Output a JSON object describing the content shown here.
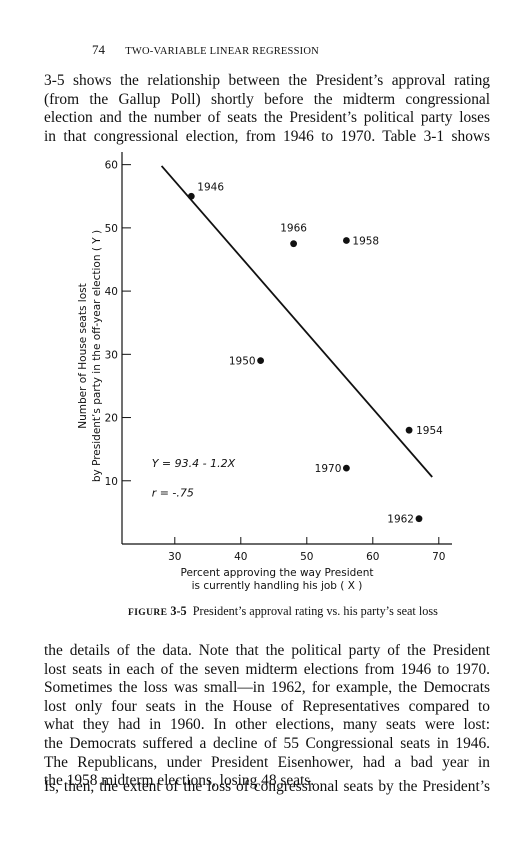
{
  "page": {
    "number": "74",
    "running_title": "TWO-VARIABLE LINEAR REGRESSION"
  },
  "paragraph_top": [
    "3-5 shows the relationship between the President’s approval rating",
    "(from the Gallup Poll) shortly before the midterm congressional",
    "election and the number of seats the President’s political party loses",
    "in that congressional election, from 1946 to 1970. Table 3-1 shows"
  ],
  "figure": {
    "label": "FIGURE",
    "number": "3-5",
    "caption": "President’s approval rating vs. his party’s seat loss"
  },
  "chart_data": {
    "type": "scatter",
    "xlabel_lines": [
      "Percent approving the way President",
      "is currently handling his job ( X )"
    ],
    "ylabel_lines": [
      "Number of House seats lost",
      "by President’s party in the off-year election ( Y )"
    ],
    "xlim": [
      22,
      72
    ],
    "ylim": [
      0,
      62
    ],
    "xticks": [
      30,
      40,
      50,
      60,
      70
    ],
    "yticks": [
      10,
      20,
      30,
      40,
      50,
      60
    ],
    "points": [
      {
        "label": "1946",
        "x": 32.5,
        "y": 55
      },
      {
        "label": "1966",
        "x": 48,
        "y": 47.5
      },
      {
        "label": "1958",
        "x": 56,
        "y": 48
      },
      {
        "label": "1950",
        "x": 43,
        "y": 29
      },
      {
        "label": "1954",
        "x": 65.5,
        "y": 18
      },
      {
        "label": "1970",
        "x": 56,
        "y": 12
      },
      {
        "label": "1962",
        "x": 67,
        "y": 4
      }
    ],
    "regression": {
      "intercept": 93.4,
      "slope": -1.2,
      "x_range": [
        28,
        69
      ]
    },
    "equation": "Y = 93.4 - 1.2X",
    "r_text": "r = -.75",
    "grid": false
  },
  "paragraph_bottom": [
    "the details of the data. Note that the political party of the President",
    "lost seats in each of the seven midterm elections from 1946 to 1970.",
    "Sometimes the loss was small—in 1962, for example, the Democrats",
    "lost only four seats in the House of Representatives compared to",
    "what they had in 1960. In other elections, many seats were lost:",
    "the Democrats suffered a decline of 55 Congressional seats in 1946.",
    "The Republicans, under President Eisenhower, had a bad year in",
    "the 1958 midterm elections, losing 48 seats."
  ],
  "paragraph_last": [
    "Is, then, the extent of the loss of congressional seats by the President’s"
  ]
}
